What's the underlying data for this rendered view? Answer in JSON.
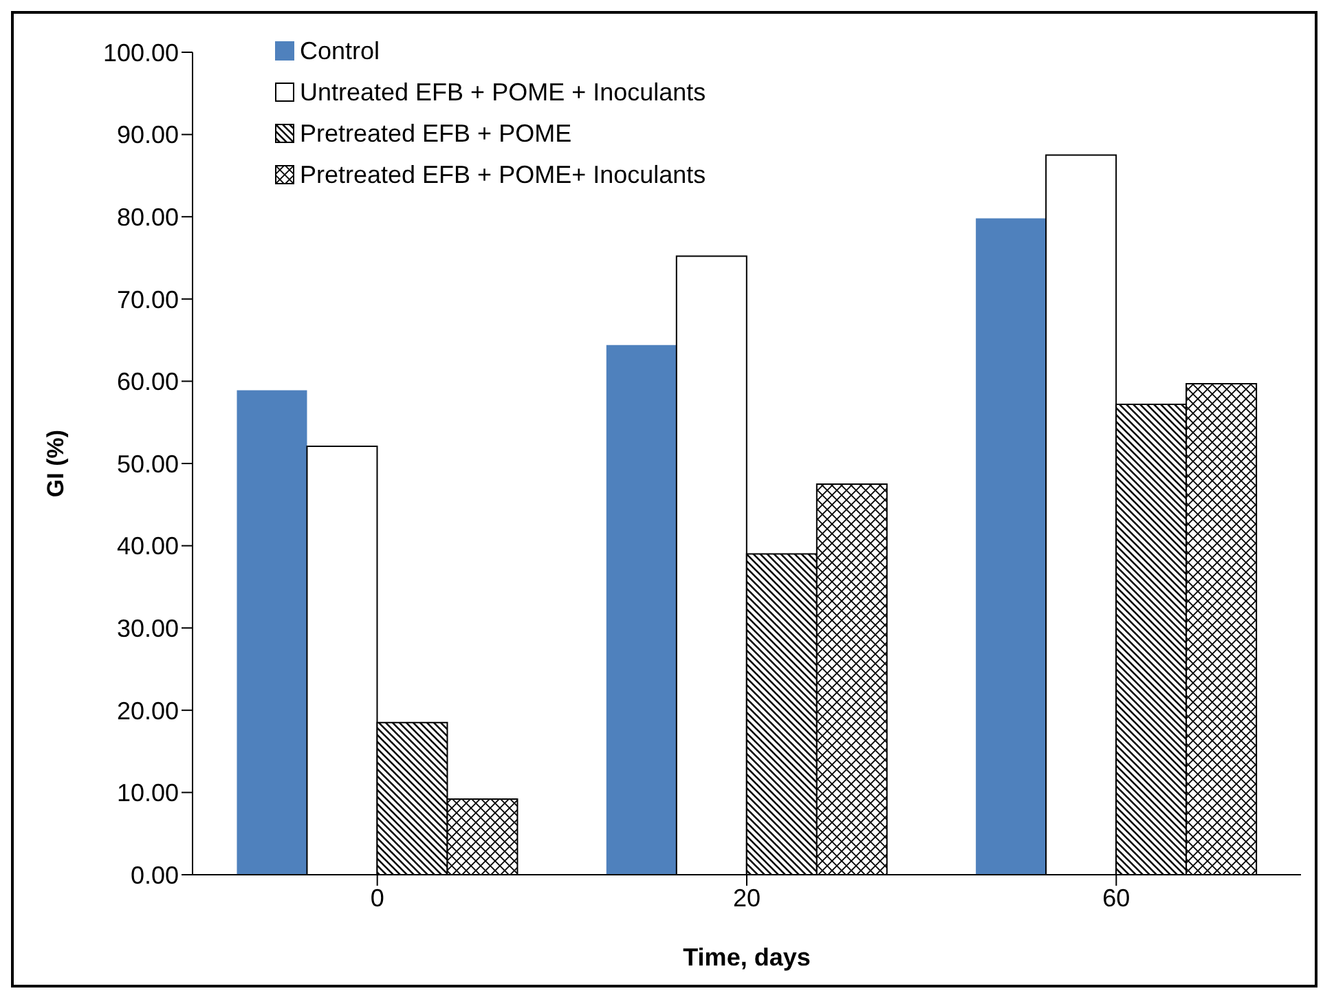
{
  "chart_data": {
    "type": "bar",
    "xlabel": "Time, days",
    "ylabel": "GI (%)",
    "categories": [
      "0",
      "20",
      "60"
    ],
    "series": [
      {
        "name": "Control",
        "color": "#4f81bd",
        "values": [
          58.9,
          64.4,
          79.8
        ]
      },
      {
        "name": "Untreated EFB + POME + Inoculants",
        "color": "#ffffff",
        "values": [
          52.1,
          75.2,
          87.5
        ]
      },
      {
        "name": "Pretreated EFB + POME",
        "color": "#000000",
        "values": [
          18.5,
          39.0,
          57.2
        ]
      },
      {
        "name": "Pretreated EFB + POME+ Inoculants",
        "color": "#000000",
        "values": [
          9.2,
          47.5,
          59.7
        ]
      }
    ],
    "ylim": [
      0,
      100
    ],
    "yticks": [
      {
        "value": 0,
        "label": "0.00"
      },
      {
        "value": 10,
        "label": "10.00"
      },
      {
        "value": 20,
        "label": "20.00"
      },
      {
        "value": 30,
        "label": "30.00"
      },
      {
        "value": 40,
        "label": "40.00"
      },
      {
        "value": 50,
        "label": "50.00"
      },
      {
        "value": 60,
        "label": "60.00"
      },
      {
        "value": 70,
        "label": "70.00"
      },
      {
        "value": 80,
        "label": "80.00"
      },
      {
        "value": 90,
        "label": "90.00"
      },
      {
        "value": 100,
        "label": "100.00"
      }
    ],
    "grid": false,
    "legend": "top left"
  }
}
